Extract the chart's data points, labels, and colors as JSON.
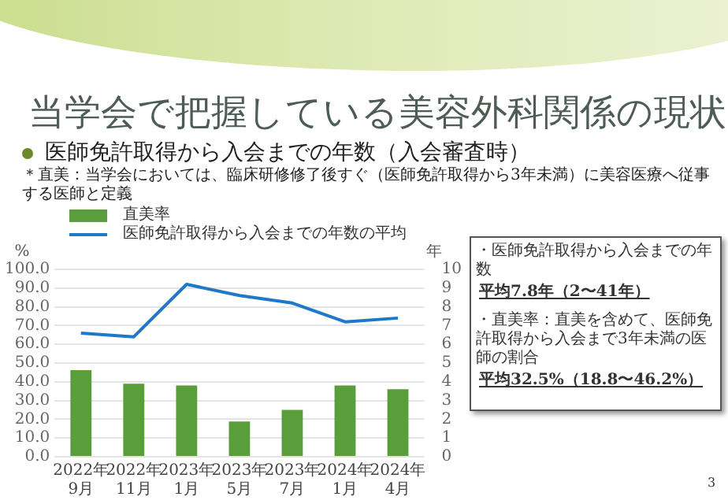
{
  "chart_data": {
    "type": "bar",
    "title": "当学会で把握している美容外科関係の現状",
    "subtitle": "医師免許取得から入会までの年数（入会審査時）",
    "ylabel": "%",
    "y2label": "年",
    "categories": [
      "2022年\n9月",
      "2022年\n11月",
      "2023年\n1月",
      "2023年\n5月",
      "2023年\n7月",
      "2024年\n1月",
      "2024年\n4月"
    ],
    "series": [
      {
        "name": "直美率",
        "color": "#5a9e3c",
        "values": [
          46.2,
          39,
          38,
          18.8,
          25,
          38,
          36
        ]
      },
      {
        "name": "医師免許取得から入会までの年数の平均",
        "type": "line",
        "axis": "y2",
        "color": "#1f78c8",
        "values": [
          6.6,
          6.4,
          9.2,
          8.6,
          8.2,
          7.2,
          7.4
        ]
      }
    ],
    "ylim": [
      0,
      100
    ],
    "yticks": [
      {
        "value": 0,
        "label": "0.0"
      },
      {
        "value": 10,
        "label": "10.0"
      },
      {
        "value": 20,
        "label": "20.0"
      },
      {
        "value": 30,
        "label": "30.0"
      },
      {
        "value": 40,
        "label": "40.0"
      },
      {
        "value": 50,
        "label": "50.0"
      },
      {
        "value": 60,
        "label": "60.0"
      },
      {
        "value": 70,
        "label": "70.0"
      },
      {
        "value": 80,
        "label": "80.0"
      },
      {
        "value": 90,
        "label": "90.0"
      },
      {
        "value": 100,
        "label": "100.0"
      }
    ],
    "y2lim": [
      0,
      10
    ],
    "y2ticks": [
      0,
      1,
      2,
      3,
      4,
      5,
      6,
      7,
      8,
      9,
      10
    ],
    "grid": "y",
    "legend": "top left",
    "marker": "none",
    "line_style": "solid",
    "annotations": [
      "＊直美：当学会においては、臨床研修修了後すぐ（医師免許取得から3年未満）に美容医療へ従事する医師と定義",
      "・医師免許取得から入会までの年数",
      "平均7.8年（2〜41年）",
      "・直美率：直美を含めて、医師免許取得から入会まで3年未満の医師の割合",
      "平均32.5%（18.8〜46.2%）",
      "3"
    ]
  }
}
